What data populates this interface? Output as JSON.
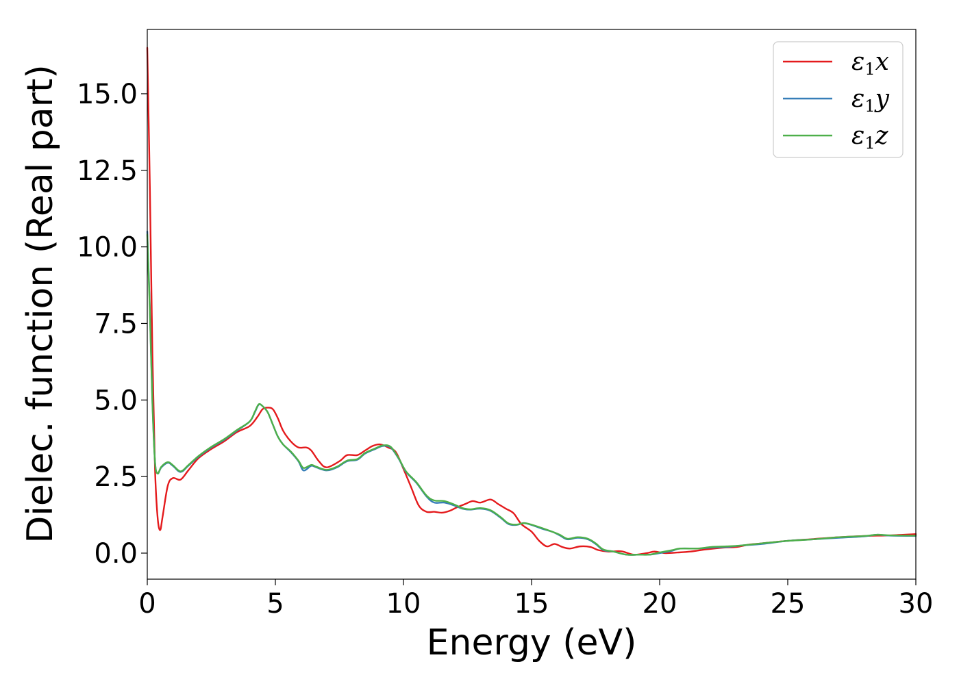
{
  "chart_data": {
    "type": "line",
    "title": "",
    "xlabel": "Energy (eV)",
    "ylabel": "Dielec. function (Real part)",
    "xlim": [
      0,
      30
    ],
    "ylim": [
      -0.85,
      17.1
    ],
    "x_ticks": [
      "0",
      "5",
      "10",
      "15",
      "20",
      "25",
      "30"
    ],
    "y_ticks": [
      "0.0",
      "2.5",
      "5.0",
      "7.5",
      "10.0",
      "12.5",
      "15.0"
    ],
    "grid": false,
    "legend_position": "top-right",
    "series": [
      {
        "name": "ε1x",
        "name_main": "ε",
        "name_sub": "1",
        "name_var": "x",
        "color": "#e41a1c",
        "points": [
          [
            0,
            16.5
          ],
          [
            0.1,
            12
          ],
          [
            0.2,
            6.5
          ],
          [
            0.3,
            2.8
          ],
          [
            0.4,
            1.2
          ],
          [
            0.5,
            0.75
          ],
          [
            0.6,
            1.2
          ],
          [
            0.8,
            2.2
          ],
          [
            1.0,
            2.45
          ],
          [
            1.3,
            2.4
          ],
          [
            1.6,
            2.7
          ],
          [
            2.0,
            3.1
          ],
          [
            2.5,
            3.4
          ],
          [
            3.0,
            3.65
          ],
          [
            3.5,
            3.95
          ],
          [
            4.0,
            4.15
          ],
          [
            4.3,
            4.45
          ],
          [
            4.5,
            4.7
          ],
          [
            4.7,
            4.75
          ],
          [
            4.9,
            4.7
          ],
          [
            5.1,
            4.4
          ],
          [
            5.3,
            4.0
          ],
          [
            5.6,
            3.65
          ],
          [
            5.9,
            3.45
          ],
          [
            6.2,
            3.45
          ],
          [
            6.4,
            3.35
          ],
          [
            6.7,
            3.0
          ],
          [
            7.0,
            2.8
          ],
          [
            7.5,
            3.0
          ],
          [
            7.8,
            3.2
          ],
          [
            8.2,
            3.2
          ],
          [
            8.5,
            3.35
          ],
          [
            8.8,
            3.5
          ],
          [
            9.1,
            3.55
          ],
          [
            9.4,
            3.45
          ],
          [
            9.7,
            3.3
          ],
          [
            10.0,
            2.75
          ],
          [
            10.3,
            2.15
          ],
          [
            10.6,
            1.55
          ],
          [
            10.9,
            1.35
          ],
          [
            11.2,
            1.35
          ],
          [
            11.5,
            1.32
          ],
          [
            11.8,
            1.38
          ],
          [
            12.1,
            1.5
          ],
          [
            12.4,
            1.6
          ],
          [
            12.7,
            1.7
          ],
          [
            13.0,
            1.65
          ],
          [
            13.4,
            1.75
          ],
          [
            13.7,
            1.6
          ],
          [
            14.0,
            1.45
          ],
          [
            14.3,
            1.3
          ],
          [
            14.6,
            0.95
          ],
          [
            15.0,
            0.7
          ],
          [
            15.3,
            0.4
          ],
          [
            15.6,
            0.22
          ],
          [
            15.9,
            0.3
          ],
          [
            16.2,
            0.2
          ],
          [
            16.5,
            0.15
          ],
          [
            16.9,
            0.22
          ],
          [
            17.3,
            0.2
          ],
          [
            17.6,
            0.1
          ],
          [
            18.0,
            0.05
          ],
          [
            18.5,
            0.06
          ],
          [
            19.0,
            -0.05
          ],
          [
            19.5,
            0.0
          ],
          [
            19.8,
            0.05
          ],
          [
            20.2,
            0.0
          ],
          [
            20.7,
            0.02
          ],
          [
            21.2,
            0.05
          ],
          [
            21.8,
            0.12
          ],
          [
            22.5,
            0.18
          ],
          [
            23.0,
            0.2
          ],
          [
            23.5,
            0.28
          ],
          [
            24.0,
            0.32
          ],
          [
            25.0,
            0.4
          ],
          [
            26.0,
            0.46
          ],
          [
            27.0,
            0.52
          ],
          [
            28.0,
            0.56
          ],
          [
            29.0,
            0.58
          ],
          [
            30.0,
            0.62
          ]
        ]
      },
      {
        "name": "ε1y",
        "name_main": "ε",
        "name_sub": "1",
        "name_var": "y",
        "color": "#377eb8",
        "points": [
          [
            0,
            10.5
          ],
          [
            0.1,
            8.0
          ],
          [
            0.2,
            5.0
          ],
          [
            0.3,
            3.0
          ],
          [
            0.4,
            2.6
          ],
          [
            0.55,
            2.8
          ],
          [
            0.8,
            2.95
          ],
          [
            1.0,
            2.85
          ],
          [
            1.3,
            2.65
          ],
          [
            1.6,
            2.85
          ],
          [
            2.0,
            3.15
          ],
          [
            2.5,
            3.45
          ],
          [
            3.0,
            3.7
          ],
          [
            3.5,
            4.0
          ],
          [
            4.0,
            4.3
          ],
          [
            4.2,
            4.6
          ],
          [
            4.35,
            4.85
          ],
          [
            4.5,
            4.8
          ],
          [
            4.7,
            4.6
          ],
          [
            4.9,
            4.2
          ],
          [
            5.1,
            3.8
          ],
          [
            5.3,
            3.55
          ],
          [
            5.6,
            3.3
          ],
          [
            5.9,
            3.0
          ],
          [
            6.1,
            2.7
          ],
          [
            6.4,
            2.85
          ],
          [
            6.6,
            2.8
          ],
          [
            7.0,
            2.7
          ],
          [
            7.4,
            2.8
          ],
          [
            7.8,
            3.0
          ],
          [
            8.2,
            3.05
          ],
          [
            8.5,
            3.25
          ],
          [
            8.9,
            3.4
          ],
          [
            9.2,
            3.5
          ],
          [
            9.5,
            3.45
          ],
          [
            9.8,
            3.1
          ],
          [
            10.1,
            2.65
          ],
          [
            10.5,
            2.3
          ],
          [
            10.9,
            1.85
          ],
          [
            11.2,
            1.65
          ],
          [
            11.6,
            1.65
          ],
          [
            12.0,
            1.55
          ],
          [
            12.3,
            1.45
          ],
          [
            12.6,
            1.42
          ],
          [
            13.0,
            1.45
          ],
          [
            13.4,
            1.38
          ],
          [
            13.8,
            1.15
          ],
          [
            14.1,
            0.95
          ],
          [
            14.4,
            0.92
          ],
          [
            14.7,
            0.98
          ],
          [
            15.0,
            0.92
          ],
          [
            15.4,
            0.8
          ],
          [
            15.8,
            0.7
          ],
          [
            16.1,
            0.58
          ],
          [
            16.4,
            0.45
          ],
          [
            16.8,
            0.5
          ],
          [
            17.2,
            0.45
          ],
          [
            17.5,
            0.3
          ],
          [
            17.8,
            0.1
          ],
          [
            18.2,
            0.05
          ],
          [
            18.7,
            -0.05
          ],
          [
            19.2,
            -0.05
          ],
          [
            19.6,
            -0.05
          ],
          [
            20.0,
            0.0
          ],
          [
            20.5,
            0.08
          ],
          [
            20.8,
            0.15
          ],
          [
            21.5,
            0.15
          ],
          [
            22.0,
            0.18
          ],
          [
            22.6,
            0.2
          ],
          [
            23.2,
            0.25
          ],
          [
            24.0,
            0.3
          ],
          [
            25.0,
            0.4
          ],
          [
            26.0,
            0.45
          ],
          [
            27.0,
            0.5
          ],
          [
            28.0,
            0.55
          ],
          [
            28.5,
            0.6
          ],
          [
            29.0,
            0.57
          ],
          [
            30.0,
            0.56
          ]
        ]
      },
      {
        "name": "ε1z",
        "name_main": "ε",
        "name_sub": "1",
        "name_var": "z",
        "color": "#4daf4a",
        "points": [
          [
            0,
            10.4
          ],
          [
            0.1,
            7.9
          ],
          [
            0.2,
            4.9
          ],
          [
            0.3,
            3.0
          ],
          [
            0.4,
            2.6
          ],
          [
            0.55,
            2.82
          ],
          [
            0.8,
            2.97
          ],
          [
            1.0,
            2.87
          ],
          [
            1.3,
            2.67
          ],
          [
            1.6,
            2.87
          ],
          [
            2.0,
            3.17
          ],
          [
            2.5,
            3.47
          ],
          [
            3.0,
            3.72
          ],
          [
            3.5,
            4.02
          ],
          [
            4.0,
            4.3
          ],
          [
            4.2,
            4.62
          ],
          [
            4.35,
            4.86
          ],
          [
            4.5,
            4.8
          ],
          [
            4.7,
            4.6
          ],
          [
            4.9,
            4.2
          ],
          [
            5.1,
            3.8
          ],
          [
            5.3,
            3.55
          ],
          [
            5.6,
            3.32
          ],
          [
            5.9,
            3.02
          ],
          [
            6.1,
            2.78
          ],
          [
            6.4,
            2.88
          ],
          [
            6.6,
            2.82
          ],
          [
            7.0,
            2.72
          ],
          [
            7.4,
            2.82
          ],
          [
            7.8,
            3.02
          ],
          [
            8.2,
            3.07
          ],
          [
            8.5,
            3.27
          ],
          [
            8.9,
            3.42
          ],
          [
            9.2,
            3.52
          ],
          [
            9.5,
            3.47
          ],
          [
            9.8,
            3.12
          ],
          [
            10.1,
            2.67
          ],
          [
            10.5,
            2.32
          ],
          [
            10.9,
            1.88
          ],
          [
            11.2,
            1.72
          ],
          [
            11.6,
            1.7
          ],
          [
            12.0,
            1.58
          ],
          [
            12.3,
            1.47
          ],
          [
            12.6,
            1.43
          ],
          [
            13.0,
            1.47
          ],
          [
            13.4,
            1.4
          ],
          [
            13.8,
            1.17
          ],
          [
            14.1,
            0.97
          ],
          [
            14.4,
            0.93
          ],
          [
            14.7,
            0.98
          ],
          [
            15.0,
            0.93
          ],
          [
            15.4,
            0.82
          ],
          [
            15.8,
            0.7
          ],
          [
            16.1,
            0.6
          ],
          [
            16.4,
            0.47
          ],
          [
            16.8,
            0.52
          ],
          [
            17.2,
            0.47
          ],
          [
            17.5,
            0.32
          ],
          [
            17.8,
            0.12
          ],
          [
            18.2,
            0.05
          ],
          [
            18.7,
            -0.05
          ],
          [
            19.2,
            -0.05
          ],
          [
            19.6,
            -0.05
          ],
          [
            20.0,
            0.02
          ],
          [
            20.5,
            0.1
          ],
          [
            20.8,
            0.15
          ],
          [
            21.5,
            0.15
          ],
          [
            22.0,
            0.2
          ],
          [
            22.6,
            0.22
          ],
          [
            23.2,
            0.25
          ],
          [
            24.0,
            0.32
          ],
          [
            25.0,
            0.4
          ],
          [
            26.0,
            0.45
          ],
          [
            27.0,
            0.52
          ],
          [
            28.0,
            0.56
          ],
          [
            28.5,
            0.6
          ],
          [
            29.0,
            0.58
          ],
          [
            30.0,
            0.57
          ]
        ]
      }
    ]
  }
}
